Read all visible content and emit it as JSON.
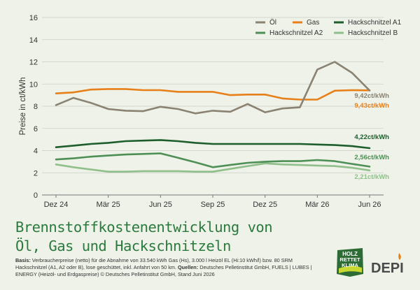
{
  "chart_data": {
    "type": "line",
    "title": "Brennstoffkostenentwicklung von Öl, Gas und Hackschnitzeln",
    "ylabel": "Preise in ct/kWh",
    "xlabel": "",
    "ylim": [
      0,
      16
    ],
    "yticks": [
      "0",
      "2",
      "4",
      "6",
      "8",
      "10",
      "12",
      "14",
      "16"
    ],
    "xtick_labels": [
      "Dez 24",
      "Mär 25",
      "Jun 25",
      "Sep 25",
      "Dez 25",
      "Mär 26",
      "Jun 26"
    ],
    "grid": "horizontal",
    "legend_position": "top-right",
    "series": [
      {
        "name": "Öl",
        "color": "#8a8272",
        "values": [
          8.1,
          8.75,
          8.3,
          7.75,
          7.6,
          7.55,
          7.95,
          7.75,
          7.35,
          7.6,
          7.5,
          8.2,
          7.45,
          7.8,
          7.9,
          11.3,
          12.0,
          11.0,
          9.42
        ],
        "end_label": "9,42ct/kWh"
      },
      {
        "name": "Gas",
        "color": "#e8801a",
        "values": [
          9.15,
          9.25,
          9.5,
          9.55,
          9.55,
          9.45,
          9.45,
          9.3,
          9.3,
          9.3,
          9.0,
          9.05,
          9.05,
          8.7,
          8.6,
          8.6,
          9.4,
          9.45,
          9.43
        ],
        "end_label": "9,43ct/kWh"
      },
      {
        "name": "Hackschnitzel A1",
        "color": "#1e5e2c",
        "values": [
          4.3,
          4.45,
          4.6,
          4.7,
          4.85,
          4.9,
          4.95,
          4.85,
          4.7,
          4.6,
          4.6,
          4.6,
          4.6,
          4.6,
          4.6,
          4.55,
          4.5,
          4.4,
          4.22
        ],
        "end_label": "4,22ct/kWh"
      },
      {
        "name": "Hackschnitzel A2",
        "color": "#4d8f55",
        "values": [
          3.2,
          3.3,
          3.45,
          3.55,
          3.65,
          3.7,
          3.75,
          3.35,
          2.95,
          2.5,
          2.7,
          2.9,
          3.0,
          3.05,
          3.05,
          3.15,
          3.05,
          2.8,
          2.56
        ],
        "end_label": "2,56ct/kWh"
      },
      {
        "name": "Hackschnitzel B",
        "color": "#8fbf8a",
        "values": [
          2.75,
          2.5,
          2.3,
          2.1,
          2.1,
          2.15,
          2.15,
          2.15,
          2.1,
          2.1,
          2.35,
          2.6,
          2.85,
          2.75,
          2.7,
          2.65,
          2.6,
          2.45,
          2.21
        ],
        "end_label": "2,21ct/kWh"
      }
    ]
  },
  "title_line1": "Brennstoffkostenentwicklung von",
  "title_line2": "Öl, Gas und Hackschnitzeln",
  "basis_label": "Basis:",
  "basis_text": " Verbraucherpreise (netto) für die Abnahme von 33.540 kWh Gas (Hs), 3.000 l Heizöl EL (Hi:10 kWh/l) bzw. 80 SRM Hackschnitzel (A1, A2 oder B), lose geschüttet, inkl. Anfahrt von 50 km. ",
  "sources_label": "Quellen:",
  "sources_text": " Deutsches Pelletinstitut GmbH, FUELS | LUBES | ENERGY (Heizöl- und Erdgaspreise) © Deutsches Pelletinstitut GmbH, Stand Juni 2026",
  "logo_holz": {
    "line1": "HOLZ",
    "line2": "RETTET",
    "line3": "KLIMA"
  },
  "logo_depi": "DEPI"
}
